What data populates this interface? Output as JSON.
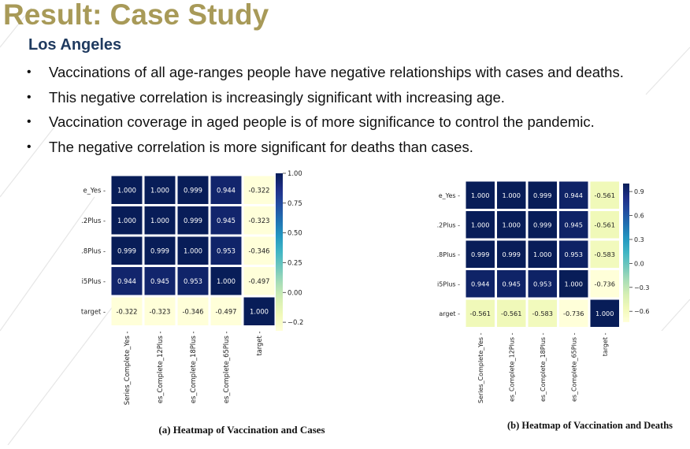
{
  "slide": {
    "title": "Result: Case Study",
    "subtitle": "Los Angeles",
    "bullets": [
      "Vaccinations of all age-ranges people have negative relationships with cases and deaths.",
      "This negative correlation is increasingly significant with increasing age.",
      "Vaccination coverage in aged people is of more significance to control the pandemic.",
      "The negative correlation is more significant for deaths than cases."
    ],
    "bullet_glyph": "•"
  },
  "chart_data": [
    {
      "type": "heatmap",
      "title": "",
      "caption": "(a) Heatmap of Vaccination and Cases",
      "row_labels": [
        "e_Yes",
        ".2Plus",
        ".8Plus",
        "i5Plus",
        "target"
      ],
      "col_labels": [
        "Series_Complete_Yes",
        "es_Complete_12Plus",
        "es_Complete_18Plus",
        "es_Complete_65Plus",
        "target"
      ],
      "values": [
        [
          1.0,
          1.0,
          0.999,
          0.944,
          -0.322
        ],
        [
          1.0,
          1.0,
          0.999,
          0.945,
          -0.323
        ],
        [
          0.999,
          0.999,
          1.0,
          0.953,
          -0.346
        ],
        [
          0.944,
          0.945,
          0.953,
          1.0,
          -0.497
        ],
        [
          -0.322,
          -0.323,
          -0.346,
          -0.497,
          1.0
        ]
      ],
      "colorbar_range": [
        -0.322,
        1.0
      ],
      "colorbar_ticks": [
        "1.00",
        "0.75",
        "0.50",
        "0.25",
        "0.00",
        "−0.2"
      ],
      "colorbar_tick_values": [
        1.0,
        0.75,
        0.5,
        0.25,
        0.0,
        -0.25
      ],
      "colormap": "YlGnBu"
    },
    {
      "type": "heatmap",
      "title": "",
      "caption": "(b) Heatmap of Vaccination and Deaths",
      "row_labels": [
        "e_Yes",
        ".2Plus",
        ".8Plus",
        "i5Plus",
        "arget"
      ],
      "col_labels": [
        "Series_Complete_Yes",
        "es_Complete_12Plus",
        "es_Complete_18Plus",
        "es_Complete_65Plus",
        "target"
      ],
      "values": [
        [
          1.0,
          1.0,
          0.999,
          0.944,
          -0.561
        ],
        [
          1.0,
          1.0,
          0.999,
          0.945,
          -0.561
        ],
        [
          0.999,
          0.999,
          1.0,
          0.953,
          -0.583
        ],
        [
          0.944,
          0.945,
          0.953,
          1.0,
          -0.736
        ],
        [
          -0.561,
          -0.561,
          -0.583,
          -0.736,
          1.0
        ]
      ],
      "colorbar_range": [
        -0.736,
        1.0
      ],
      "colorbar_ticks": [
        "0.9",
        "0.6",
        "0.3",
        "0.0",
        "−0.3",
        "−0.6"
      ],
      "colorbar_tick_values": [
        0.9,
        0.6,
        0.3,
        0.0,
        -0.3,
        -0.6
      ],
      "colormap": "YlGnBu"
    }
  ]
}
